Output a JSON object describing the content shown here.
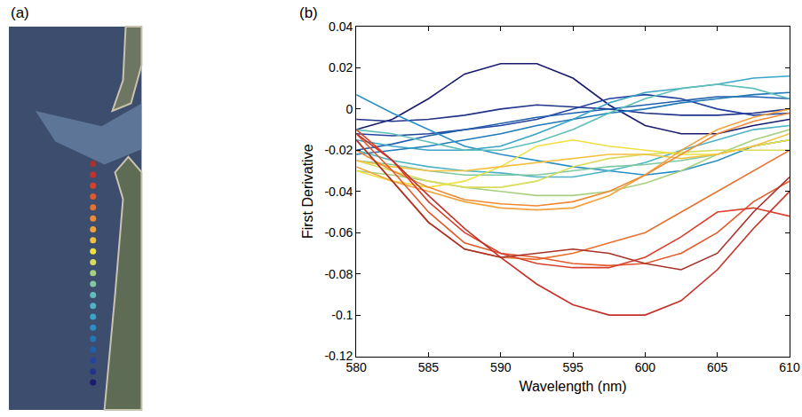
{
  "chart_data": [
    {
      "type": "scatter",
      "title": "(a)",
      "tick_labels": false,
      "colors": [
        "#1a1a6e",
        "#22338a",
        "#23449e",
        "#1f5fae",
        "#1f78b8",
        "#2a8fc4",
        "#3aa3c8",
        "#4db3c4",
        "#5fbfb8",
        "#7fc8a0",
        "#a7d07f",
        "#d8dc5a",
        "#f0df3c",
        "#f5c040",
        "#f3a23c",
        "#ee8a34",
        "#e8702e",
        "#e05a2c",
        "#d8402c",
        "#c53028",
        "#a8322a"
      ]
    },
    {
      "type": "line",
      "title": "(b)",
      "x_label": "Wavelength (nm)",
      "y_label": "First Derivative",
      "x": [
        580,
        582.5,
        585,
        587.5,
        590,
        592.5,
        595,
        597.5,
        600,
        602.5,
        605,
        607.5,
        610
      ],
      "xlim": [
        580,
        610
      ],
      "ylim": [
        -0.12,
        0.04
      ],
      "xticks": [
        580,
        585,
        590,
        595,
        600,
        605,
        610
      ],
      "yticks": [
        -0.12,
        -0.1,
        -0.08,
        -0.06,
        -0.04,
        -0.02,
        0,
        0.02,
        0.04
      ],
      "grid": false,
      "series": [
        {
          "color": "#1a1a6e",
          "values": [
            -0.01,
            -0.005,
            0.005,
            0.017,
            0.022,
            0.022,
            0.015,
            0.002,
            -0.008,
            -0.012,
            -0.012,
            -0.008,
            -0.005
          ]
        },
        {
          "color": "#22338a",
          "values": [
            -0.005,
            -0.006,
            -0.005,
            -0.003,
            0,
            0.002,
            0.001,
            0,
            -0.002,
            -0.003,
            -0.003,
            -0.002,
            0
          ]
        },
        {
          "color": "#23449e",
          "values": [
            -0.012,
            -0.013,
            -0.012,
            -0.01,
            -0.008,
            -0.005,
            0,
            0.005,
            0.007,
            0.005,
            0,
            -0.003,
            -0.002
          ]
        },
        {
          "color": "#1f5fae",
          "values": [
            -0.02,
            -0.017,
            -0.013,
            -0.01,
            -0.007,
            -0.004,
            -0.002,
            0,
            0.002,
            0.004,
            0.006,
            0.006,
            0.005
          ]
        },
        {
          "color": "#1f78b8",
          "values": [
            -0.022,
            -0.02,
            -0.018,
            -0.015,
            -0.012,
            -0.008,
            -0.005,
            -0.002,
            0,
            0.003,
            0.005,
            0.007,
            0.008
          ]
        },
        {
          "color": "#2a8fc4",
          "values": [
            0.007,
            -0.002,
            -0.01,
            -0.018,
            -0.022,
            -0.025,
            -0.028,
            -0.03,
            -0.032,
            -0.03,
            -0.025,
            -0.018,
            -0.015
          ]
        },
        {
          "color": "#3aa3c8",
          "values": [
            -0.015,
            -0.018,
            -0.02,
            -0.02,
            -0.018,
            -0.012,
            -0.005,
            0.003,
            0.008,
            0.01,
            0.012,
            0.015,
            0.016
          ]
        },
        {
          "color": "#4db3c4",
          "values": [
            -0.02,
            -0.025,
            -0.028,
            -0.03,
            -0.031,
            -0.033,
            -0.033,
            -0.03,
            -0.026,
            -0.02,
            -0.015,
            -0.01,
            -0.008
          ]
        },
        {
          "color": "#5fbfb8",
          "values": [
            -0.01,
            -0.012,
            -0.016,
            -0.02,
            -0.02,
            -0.016,
            -0.01,
            -0.002,
            0.005,
            0.01,
            0.012,
            0.01,
            0.005
          ]
        },
        {
          "color": "#7fc8a0",
          "values": [
            -0.025,
            -0.027,
            -0.03,
            -0.032,
            -0.032,
            -0.032,
            -0.03,
            -0.028,
            -0.027,
            -0.025,
            -0.022,
            -0.018,
            -0.015
          ]
        },
        {
          "color": "#a7d07f",
          "values": [
            -0.03,
            -0.032,
            -0.035,
            -0.038,
            -0.04,
            -0.042,
            -0.042,
            -0.04,
            -0.036,
            -0.03,
            -0.022,
            -0.015,
            -0.01
          ]
        },
        {
          "color": "#d8dc5a",
          "values": [
            -0.025,
            -0.03,
            -0.035,
            -0.038,
            -0.038,
            -0.035,
            -0.028,
            -0.024,
            -0.022,
            -0.021,
            -0.02,
            -0.02,
            -0.02
          ]
        },
        {
          "color": "#f0df3c",
          "values": [
            -0.03,
            -0.035,
            -0.038,
            -0.035,
            -0.028,
            -0.018,
            -0.015,
            -0.018,
            -0.02,
            -0.022,
            -0.022,
            -0.018,
            -0.015
          ]
        },
        {
          "color": "#f5c040",
          "values": [
            -0.025,
            -0.028,
            -0.03,
            -0.03,
            -0.028,
            -0.026,
            -0.024,
            -0.022,
            -0.022,
            -0.024,
            -0.022,
            -0.018,
            -0.012
          ]
        },
        {
          "color": "#f3a23c",
          "values": [
            -0.028,
            -0.035,
            -0.04,
            -0.045,
            -0.048,
            -0.049,
            -0.048,
            -0.042,
            -0.032,
            -0.02,
            -0.01,
            -0.004,
            0
          ]
        },
        {
          "color": "#ee8a34",
          "values": [
            -0.02,
            -0.03,
            -0.038,
            -0.044,
            -0.046,
            -0.047,
            -0.045,
            -0.04,
            -0.032,
            -0.022,
            -0.012,
            -0.006,
            -0.002
          ]
        },
        {
          "color": "#e8702e",
          "values": [
            -0.015,
            -0.035,
            -0.055,
            -0.068,
            -0.072,
            -0.073,
            -0.07,
            -0.065,
            -0.06,
            -0.05,
            -0.04,
            -0.03,
            -0.02
          ]
        },
        {
          "color": "#e05a2c",
          "values": [
            -0.012,
            -0.03,
            -0.05,
            -0.065,
            -0.07,
            -0.072,
            -0.075,
            -0.076,
            -0.075,
            -0.07,
            -0.06,
            -0.045,
            -0.035
          ]
        },
        {
          "color": "#d8402c",
          "values": [
            -0.01,
            -0.025,
            -0.045,
            -0.06,
            -0.07,
            -0.075,
            -0.077,
            -0.077,
            -0.072,
            -0.062,
            -0.05,
            -0.048,
            -0.052
          ]
        },
        {
          "color": "#c53028",
          "values": [
            -0.012,
            -0.025,
            -0.042,
            -0.058,
            -0.072,
            -0.085,
            -0.095,
            -0.1,
            -0.1,
            -0.093,
            -0.078,
            -0.058,
            -0.04
          ]
        },
        {
          "color": "#a8322a",
          "values": [
            -0.015,
            -0.035,
            -0.055,
            -0.068,
            -0.072,
            -0.07,
            -0.068,
            -0.07,
            -0.075,
            -0.078,
            -0.07,
            -0.05,
            -0.033
          ]
        }
      ]
    }
  ]
}
